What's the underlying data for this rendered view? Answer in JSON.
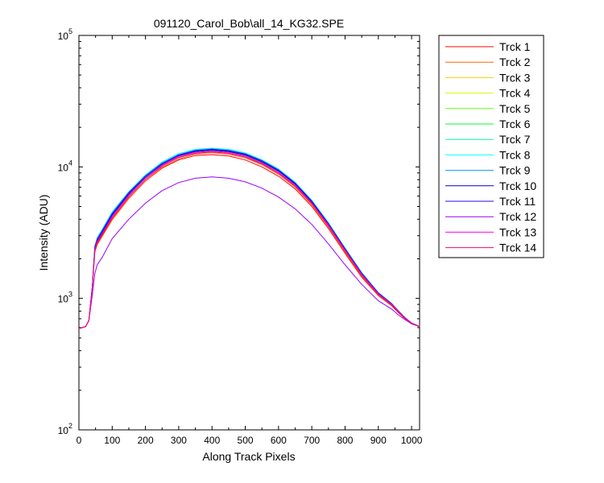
{
  "chart_data": {
    "type": "line",
    "title": "091120_Carol_Bob\\all_14_KG32.SPE",
    "xlabel": "Along Track Pixels",
    "ylabel": "Intensity (ADU)",
    "xlim": [
      0,
      1024
    ],
    "ylim": [
      100,
      100000
    ],
    "yscale": "log",
    "grid": false,
    "legend_position": "outside-right",
    "x_ticks": [
      "0",
      "100",
      "200",
      "300",
      "400",
      "500",
      "600",
      "700",
      "800",
      "900",
      "1000"
    ],
    "y_ticks": [
      {
        "base": "10",
        "exp": "2"
      },
      {
        "base": "10",
        "exp": "3"
      },
      {
        "base": "10",
        "exp": "4"
      },
      {
        "base": "10",
        "exp": "5"
      }
    ],
    "x": [
      0,
      20,
      30,
      40,
      48,
      55,
      70,
      100,
      150,
      200,
      250,
      300,
      350,
      400,
      450,
      500,
      550,
      600,
      650,
      700,
      750,
      800,
      850,
      900,
      940,
      960,
      980,
      1000,
      1024
    ],
    "series": [
      {
        "name": "Trck 1",
        "color": "#ff0000",
        "values": [
          590,
          610,
          680,
          1200,
          2300,
          2600,
          3000,
          4000,
          5800,
          7800,
          9800,
          11300,
          12200,
          12400,
          12100,
          11300,
          10000,
          8500,
          6800,
          5000,
          3400,
          2200,
          1450,
          1050,
          880,
          780,
          700,
          640,
          610
        ]
      },
      {
        "name": "Trck 2",
        "color": "#ff6600",
        "values": [
          590,
          610,
          680,
          1200,
          2250,
          2550,
          2950,
          3950,
          5750,
          7800,
          9900,
          11500,
          12500,
          12800,
          12500,
          11700,
          10400,
          8800,
          7000,
          5150,
          3500,
          2250,
          1480,
          1060,
          890,
          790,
          705,
          645,
          612
        ]
      },
      {
        "name": "Trck 3",
        "color": "#ffcc00",
        "values": [
          590,
          610,
          680,
          1200,
          2350,
          2700,
          3100,
          4200,
          6100,
          8200,
          10300,
          12000,
          12900,
          13200,
          12900,
          12100,
          10700,
          9100,
          7250,
          5300,
          3600,
          2320,
          1520,
          1080,
          900,
          795,
          708,
          646,
          612
        ]
      },
      {
        "name": "Trck 4",
        "color": "#ccff00",
        "values": [
          590,
          610,
          680,
          1200,
          2400,
          2750,
          3150,
          4300,
          6200,
          8300,
          10400,
          12100,
          13100,
          13400,
          13100,
          12300,
          10900,
          9300,
          7400,
          5400,
          3650,
          2350,
          1540,
          1090,
          905,
          798,
          710,
          647,
          612
        ]
      },
      {
        "name": "Trck 5",
        "color": "#66ff00",
        "values": [
          590,
          610,
          680,
          1200,
          2400,
          2750,
          3200,
          4350,
          6300,
          8400,
          10500,
          12200,
          13200,
          13500,
          13200,
          12400,
          11000,
          9400,
          7450,
          5450,
          3680,
          2370,
          1550,
          1095,
          908,
          800,
          712,
          648,
          612
        ]
      },
      {
        "name": "Trck 6",
        "color": "#00ff33",
        "values": [
          590,
          610,
          680,
          1200,
          2450,
          2800,
          3250,
          4400,
          6350,
          8500,
          10600,
          12300,
          13300,
          13600,
          13300,
          12500,
          11100,
          9450,
          7500,
          5480,
          3700,
          2380,
          1555,
          1098,
          910,
          802,
          713,
          648,
          612
        ]
      },
      {
        "name": "Trck 7",
        "color": "#00ff99",
        "values": [
          590,
          610,
          680,
          1200,
          2450,
          2850,
          3300,
          4450,
          6400,
          8550,
          10700,
          12400,
          13400,
          13700,
          13400,
          12600,
          11200,
          9500,
          7550,
          5500,
          3720,
          2390,
          1560,
          1100,
          912,
          803,
          714,
          649,
          612
        ]
      },
      {
        "name": "Trck 8",
        "color": "#00ffff",
        "values": [
          590,
          610,
          680,
          1200,
          2500,
          2900,
          3350,
          4550,
          6500,
          8700,
          10900,
          12600,
          13600,
          13900,
          13600,
          12800,
          11350,
          9650,
          7650,
          5580,
          3770,
          2420,
          1575,
          1110,
          918,
          806,
          716,
          650,
          612
        ]
      },
      {
        "name": "Trck 9",
        "color": "#0099ff",
        "values": [
          590,
          610,
          680,
          1200,
          2500,
          2850,
          3300,
          4450,
          6400,
          8550,
          10700,
          12400,
          13400,
          13700,
          13400,
          12600,
          11200,
          9500,
          7550,
          5500,
          3720,
          2390,
          1560,
          1100,
          912,
          803,
          714,
          649,
          612
        ]
      },
      {
        "name": "Trck 10",
        "color": "#0000cc",
        "values": [
          590,
          610,
          680,
          1200,
          2400,
          2750,
          3150,
          4300,
          6200,
          8300,
          10400,
          12100,
          13100,
          13400,
          13100,
          12300,
          10900,
          9300,
          7400,
          5400,
          3650,
          2350,
          1540,
          1090,
          905,
          798,
          710,
          647,
          612
        ]
      },
      {
        "name": "Trck 11",
        "color": "#3300ff",
        "values": [
          590,
          610,
          680,
          1200,
          2450,
          2800,
          3250,
          4400,
          6350,
          8500,
          10600,
          12300,
          13300,
          13600,
          13300,
          12500,
          11100,
          9450,
          7500,
          5480,
          3700,
          2380,
          1555,
          1098,
          910,
          802,
          713,
          648,
          612
        ]
      },
      {
        "name": "Trck 12",
        "color": "#9900ff",
        "values": [
          590,
          610,
          680,
          1050,
          1550,
          1800,
          2050,
          2850,
          4000,
          5300,
          6600,
          7600,
          8200,
          8400,
          8200,
          7700,
          6900,
          5900,
          4800,
          3650,
          2600,
          1800,
          1280,
          960,
          830,
          750,
          690,
          640,
          612
        ]
      },
      {
        "name": "Trck 13",
        "color": "#ff00ff",
        "values": [
          590,
          610,
          680,
          1200,
          2350,
          2700,
          3100,
          4200,
          6100,
          8200,
          10300,
          12000,
          12900,
          13200,
          12900,
          12100,
          10700,
          9100,
          7250,
          5300,
          3600,
          2320,
          1520,
          1080,
          900,
          795,
          708,
          646,
          612
        ]
      },
      {
        "name": "Trck 14",
        "color": "#ff0066",
        "values": [
          590,
          610,
          680,
          1200,
          2300,
          2650,
          3050,
          4100,
          5950,
          8000,
          10100,
          11800,
          12700,
          13000,
          12700,
          11900,
          10550,
          8950,
          7150,
          5250,
          3550,
          2300,
          1500,
          1070,
          895,
          790,
          706,
          645,
          612
        ]
      }
    ]
  }
}
